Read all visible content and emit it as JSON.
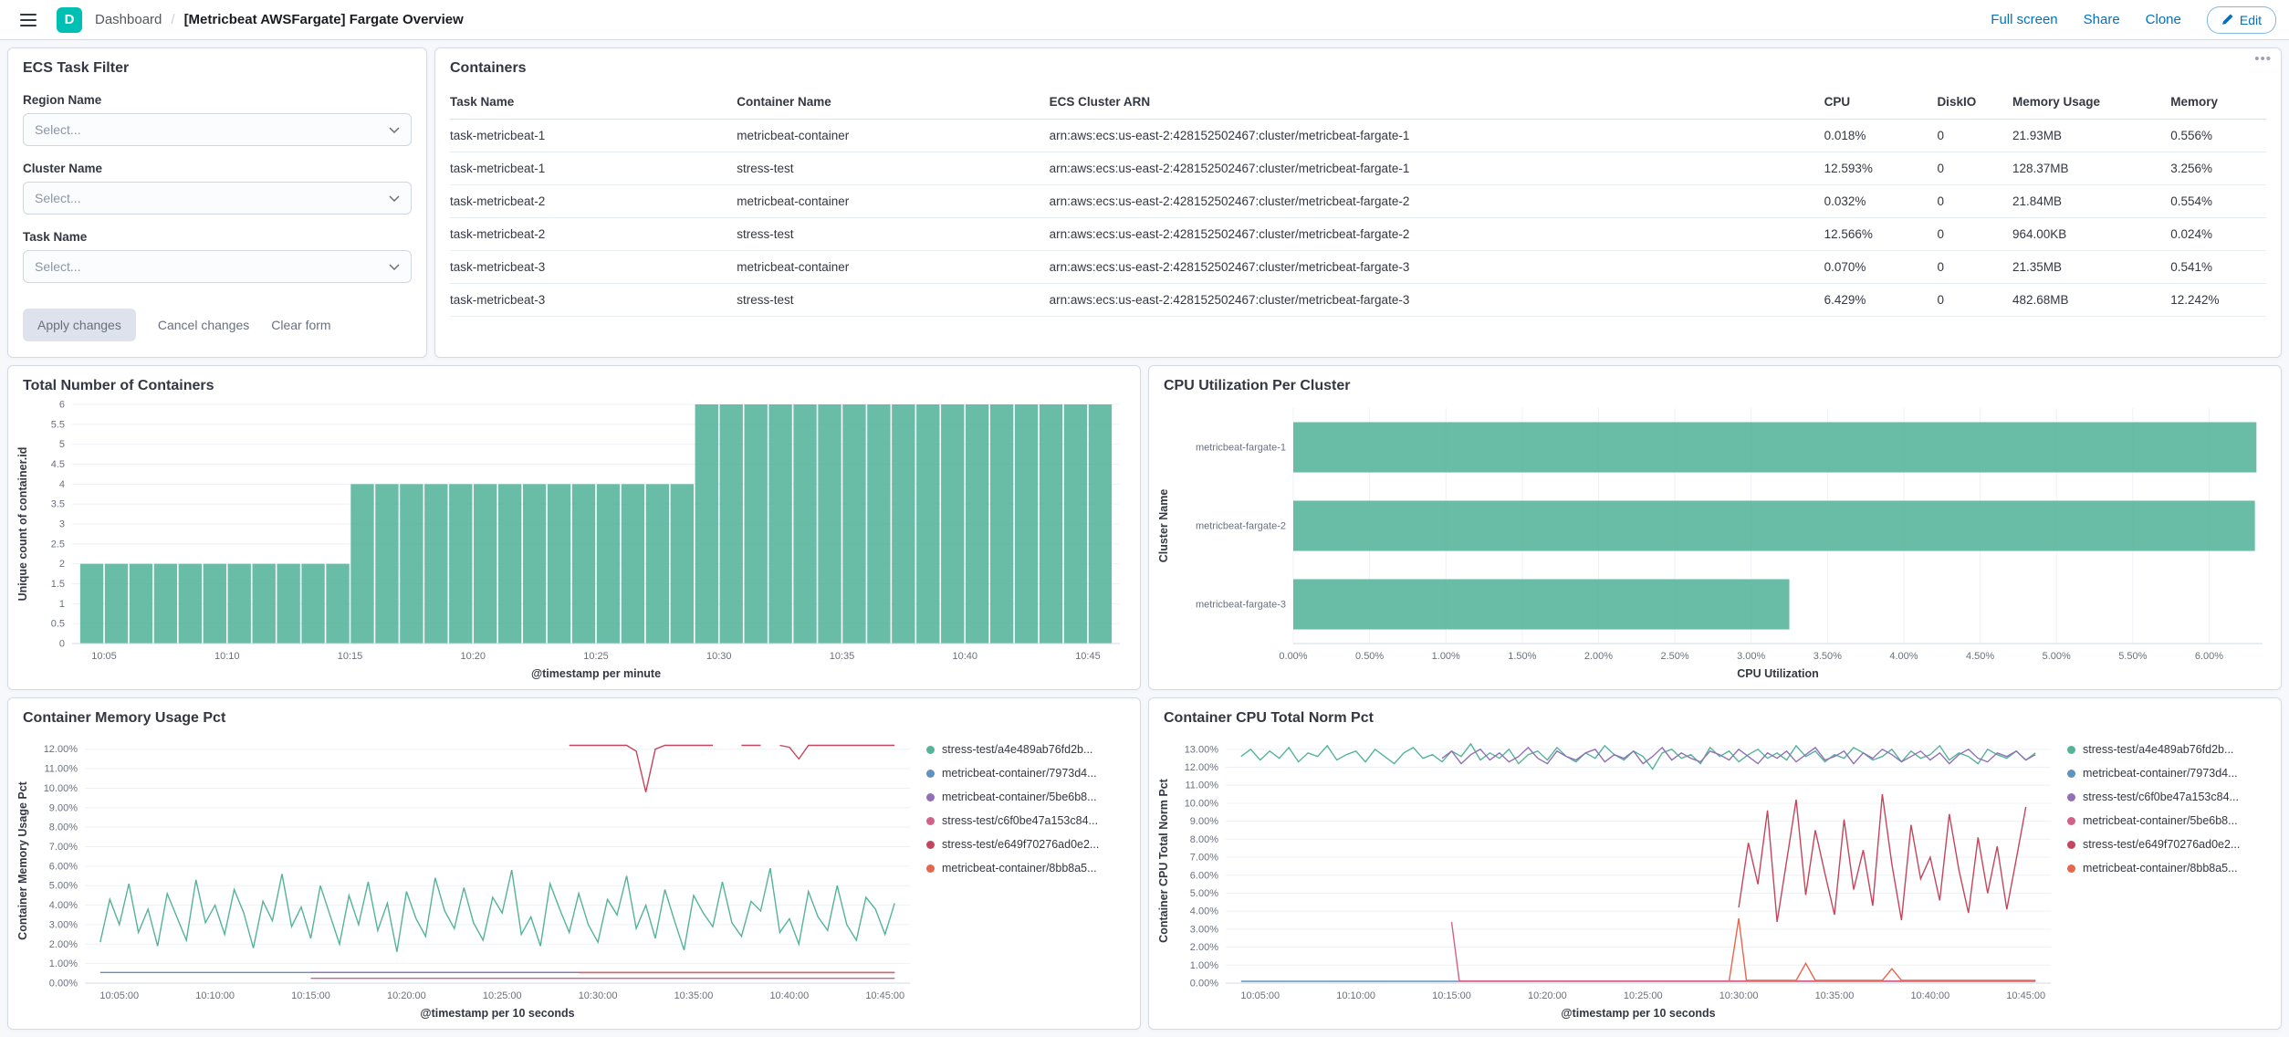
{
  "header": {
    "logo_letter": "D",
    "breadcrumbs": [
      "Dashboard",
      "[Metricbeat AWSFargate] Fargate Overview"
    ],
    "nav": {
      "full_screen": "Full screen",
      "share": "Share",
      "clone": "Clone",
      "edit": "Edit"
    }
  },
  "colors": {
    "accent": "#0071C2",
    "bar_green": "#54B399"
  },
  "filter_panel": {
    "title": "ECS Task Filter",
    "fields": [
      {
        "label": "Region Name",
        "placeholder": "Select..."
      },
      {
        "label": "Cluster Name",
        "placeholder": "Select..."
      },
      {
        "label": "Task Name",
        "placeholder": "Select..."
      }
    ],
    "buttons": {
      "apply": "Apply changes",
      "cancel": "Cancel changes",
      "clear": "Clear form"
    }
  },
  "containers_table": {
    "title": "Containers",
    "columns": [
      "Task Name",
      "Container Name",
      "ECS Cluster ARN",
      "CPU",
      "DiskIO",
      "Memory Usage",
      "Memory"
    ],
    "rows": [
      [
        "task-metricbeat-1",
        "metricbeat-container",
        "arn:aws:ecs:us-east-2:428152502467:cluster/metricbeat-fargate-1",
        "0.018%",
        "0",
        "21.93MB",
        "0.556%"
      ],
      [
        "task-metricbeat-1",
        "stress-test",
        "arn:aws:ecs:us-east-2:428152502467:cluster/metricbeat-fargate-1",
        "12.593%",
        "0",
        "128.37MB",
        "3.256%"
      ],
      [
        "task-metricbeat-2",
        "metricbeat-container",
        "arn:aws:ecs:us-east-2:428152502467:cluster/metricbeat-fargate-2",
        "0.032%",
        "0",
        "21.84MB",
        "0.554%"
      ],
      [
        "task-metricbeat-2",
        "stress-test",
        "arn:aws:ecs:us-east-2:428152502467:cluster/metricbeat-fargate-2",
        "12.566%",
        "0",
        "964.00KB",
        "0.024%"
      ],
      [
        "task-metricbeat-3",
        "metricbeat-container",
        "arn:aws:ecs:us-east-2:428152502467:cluster/metricbeat-fargate-3",
        "0.070%",
        "0",
        "21.35MB",
        "0.541%"
      ],
      [
        "task-metricbeat-3",
        "stress-test",
        "arn:aws:ecs:us-east-2:428152502467:cluster/metricbeat-fargate-3",
        "6.429%",
        "0",
        "482.68MB",
        "12.242%"
      ]
    ]
  },
  "chart_data": [
    {
      "type": "bar",
      "title": "Total Number of Containers",
      "xlabel": "@timestamp per minute",
      "ylabel": "Unique count of container.id",
      "color": "#54B399",
      "x0": 4,
      "dx": 1,
      "values": [
        2,
        2,
        2,
        2,
        2,
        2,
        2,
        2,
        2,
        2,
        2,
        4,
        4,
        4,
        4,
        4,
        4,
        4,
        4,
        4,
        4,
        4,
        4,
        4,
        4,
        6,
        6,
        6,
        6,
        6,
        6,
        6,
        6,
        6,
        6,
        6,
        6,
        6,
        6,
        6,
        6,
        6
      ],
      "xlim": [
        3.7,
        46.3
      ],
      "ylim": [
        0,
        6
      ],
      "yticks": [
        {
          "v": 0,
          "label": "0"
        },
        {
          "v": 0.5,
          "label": "0.5"
        },
        {
          "v": 1,
          "label": "1"
        },
        {
          "v": 1.5,
          "label": "1.5"
        },
        {
          "v": 2,
          "label": "2"
        },
        {
          "v": 2.5,
          "label": "2.5"
        },
        {
          "v": 3,
          "label": "3"
        },
        {
          "v": 3.5,
          "label": "3.5"
        },
        {
          "v": 4,
          "label": "4"
        },
        {
          "v": 4.5,
          "label": "4.5"
        },
        {
          "v": 5,
          "label": "5"
        },
        {
          "v": 5.5,
          "label": "5.5"
        },
        {
          "v": 6,
          "label": "6"
        }
      ],
      "xticks": [
        {
          "v": 5,
          "label": "10:05"
        },
        {
          "v": 10,
          "label": "10:10"
        },
        {
          "v": 15,
          "label": "10:15"
        },
        {
          "v": 20,
          "label": "10:20"
        },
        {
          "v": 25,
          "label": "10:25"
        },
        {
          "v": 30,
          "label": "10:30"
        },
        {
          "v": 35,
          "label": "10:35"
        },
        {
          "v": 40,
          "label": "10:40"
        },
        {
          "v": 45,
          "label": "10:45"
        }
      ]
    },
    {
      "type": "hbar",
      "title": "CPU Utilization Per Cluster",
      "xlabel": "CPU Utilization",
      "ylabel": "Cluster Name",
      "color": "#54B399",
      "categories": [
        "metricbeat-fargate-1",
        "metricbeat-fargate-2",
        "metricbeat-fargate-3"
      ],
      "values": [
        6.31,
        6.3,
        3.25
      ],
      "xlim": [
        0,
        6.35
      ],
      "xticks": [
        {
          "v": 0,
          "label": "0.00%"
        },
        {
          "v": 0.5,
          "label": "0.50%"
        },
        {
          "v": 1,
          "label": "1.00%"
        },
        {
          "v": 1.5,
          "label": "1.50%"
        },
        {
          "v": 2,
          "label": "2.00%"
        },
        {
          "v": 2.5,
          "label": "2.50%"
        },
        {
          "v": 3,
          "label": "3.00%"
        },
        {
          "v": 3.5,
          "label": "3.50%"
        },
        {
          "v": 4,
          "label": "4.00%"
        },
        {
          "v": 4.5,
          "label": "4.50%"
        },
        {
          "v": 5,
          "label": "5.00%"
        },
        {
          "v": 5.5,
          "label": "5.50%"
        },
        {
          "v": 6,
          "label": "6.00%"
        }
      ]
    },
    {
      "type": "line",
      "title": "Container Memory Usage Pct",
      "xlabel": "@timestamp per 10 seconds",
      "ylabel": "Container Memory Usage Pct",
      "xlim": [
        3.2,
        46.3
      ],
      "ylim": [
        0,
        12.55
      ],
      "yticks": [
        {
          "v": 0,
          "label": "0.00%"
        },
        {
          "v": 1,
          "label": "1.00%"
        },
        {
          "v": 2,
          "label": "2.00%"
        },
        {
          "v": 3,
          "label": "3.00%"
        },
        {
          "v": 4,
          "label": "4.00%"
        },
        {
          "v": 5,
          "label": "5.00%"
        },
        {
          "v": 6,
          "label": "6.00%"
        },
        {
          "v": 7,
          "label": "7.00%"
        },
        {
          "v": 8,
          "label": "8.00%"
        },
        {
          "v": 9,
          "label": "9.00%"
        },
        {
          "v": 10,
          "label": "10.00%"
        },
        {
          "v": 11,
          "label": "11.00%"
        },
        {
          "v": 12,
          "label": "12.00%"
        }
      ],
      "xticks": [
        {
          "v": 5,
          "label": "10:05:00"
        },
        {
          "v": 10,
          "label": "10:10:00"
        },
        {
          "v": 15,
          "label": "10:15:00"
        },
        {
          "v": 20,
          "label": "10:20:00"
        },
        {
          "v": 25,
          "label": "10:25:00"
        },
        {
          "v": 30,
          "label": "10:30:00"
        },
        {
          "v": 35,
          "label": "10:35:00"
        },
        {
          "v": 40,
          "label": "10:40:00"
        },
        {
          "v": 45,
          "label": "10:45:00"
        }
      ],
      "series": [
        {
          "name": "stress-test/a4e489ab76fd2b...",
          "color": "#54B399",
          "x0": 4,
          "dx": 0.5,
          "values": [
            2.1,
            4.3,
            3.0,
            5.1,
            2.6,
            3.8,
            1.9,
            4.6,
            3.4,
            2.2,
            5.3,
            3.1,
            4.0,
            2.5,
            4.8,
            3.6,
            1.8,
            4.2,
            3.2,
            5.6,
            2.9,
            3.9,
            2.3,
            5.0,
            3.5,
            2.0,
            4.5,
            3.0,
            5.2,
            2.7,
            4.1,
            1.6,
            4.7,
            3.3,
            2.4,
            5.4,
            3.7,
            2.8,
            4.9,
            3.1,
            2.2,
            4.4,
            3.6,
            5.8,
            2.5,
            3.4,
            1.9,
            5.1,
            3.8,
            2.6,
            4.6,
            3.0,
            2.1,
            4.3,
            3.5,
            5.5,
            2.8,
            4.0,
            2.3,
            4.8,
            3.2,
            1.7,
            4.5,
            3.6,
            2.9,
            5.2,
            3.1,
            2.4,
            4.2,
            3.7,
            5.9,
            2.6,
            3.3,
            2.0,
            4.7,
            3.4,
            2.7,
            5.0,
            3.0,
            2.2,
            4.4,
            3.8,
            2.5,
            4.1
          ]
        },
        {
          "name": "metricbeat-container/7973d4...",
          "color": "#6092C0",
          "points": [
            [
              4,
              0.55
            ],
            [
              45.5,
              0.55
            ]
          ]
        },
        {
          "name": "metricbeat-container/5be6b8...",
          "color": "#9170B8",
          "points": [
            [
              15,
              0.55
            ],
            [
              45.5,
              0.55
            ]
          ]
        },
        {
          "name": "stress-test/c6f0be47a153c84...",
          "color": "#D36086",
          "points": [
            [
              15,
              0.25
            ],
            [
              45.5,
              0.25
            ]
          ]
        },
        {
          "name": "stress-test/e649f70276ad0e2...",
          "color": "#C4455C",
          "x0": 28.5,
          "dx": 0.5,
          "values": [
            12.2,
            12.2,
            12.2,
            12.2,
            12.2,
            12.2,
            12.2,
            11.9,
            9.8,
            12.0,
            12.2,
            12.2,
            12.2,
            12.2,
            12.2,
            12.2,
            null,
            null,
            12.2,
            12.2,
            12.2,
            null,
            12.2,
            12.1,
            11.5,
            12.2,
            12.2,
            12.2,
            12.2,
            12.2,
            12.2,
            12.2,
            12.2,
            12.2,
            12.2
          ]
        },
        {
          "name": "metricbeat-container/8bb8a5...",
          "color": "#E7664C",
          "points": [
            [
              29,
              0.54
            ],
            [
              45.5,
              0.54
            ]
          ]
        }
      ]
    },
    {
      "type": "line",
      "title": "Container CPU Total Norm Pct",
      "xlabel": "@timestamp per 10 seconds",
      "ylabel": "Container CPU Total Norm Pct",
      "xlim": [
        3.2,
        46.3
      ],
      "ylim": [
        0,
        13.6
      ],
      "yticks": [
        {
          "v": 0,
          "label": "0.00%"
        },
        {
          "v": 1,
          "label": "1.00%"
        },
        {
          "v": 2,
          "label": "2.00%"
        },
        {
          "v": 3,
          "label": "3.00%"
        },
        {
          "v": 4,
          "label": "4.00%"
        },
        {
          "v": 5,
          "label": "5.00%"
        },
        {
          "v": 6,
          "label": "6.00%"
        },
        {
          "v": 7,
          "label": "7.00%"
        },
        {
          "v": 8,
          "label": "8.00%"
        },
        {
          "v": 9,
          "label": "9.00%"
        },
        {
          "v": 10,
          "label": "10.00%"
        },
        {
          "v": 11,
          "label": "11.00%"
        },
        {
          "v": 12,
          "label": "12.00%"
        },
        {
          "v": 13,
          "label": "13.00%"
        }
      ],
      "xticks": [
        {
          "v": 5,
          "label": "10:05:00"
        },
        {
          "v": 10,
          "label": "10:10:00"
        },
        {
          "v": 15,
          "label": "10:15:00"
        },
        {
          "v": 20,
          "label": "10:20:00"
        },
        {
          "v": 25,
          "label": "10:25:00"
        },
        {
          "v": 30,
          "label": "10:30:00"
        },
        {
          "v": 35,
          "label": "10:35:00"
        },
        {
          "v": 40,
          "label": "10:40:00"
        },
        {
          "v": 45,
          "label": "10:45:00"
        }
      ],
      "series": [
        {
          "name": "stress-test/a4e489ab76fd2b...",
          "color": "#54B399",
          "x0": 4,
          "dx": 0.5,
          "values": [
            12.6,
            13.0,
            12.4,
            12.9,
            12.5,
            13.1,
            12.3,
            12.8,
            12.6,
            13.2,
            12.4,
            12.7,
            12.9,
            12.3,
            13.0,
            12.6,
            12.2,
            12.8,
            13.1,
            12.5,
            12.7,
            12.3,
            12.9,
            12.6,
            13.3,
            12.4,
            12.8,
            12.5,
            13.0,
            12.2,
            12.7,
            12.9,
            12.4,
            13.1,
            12.6,
            12.3,
            12.8,
            12.5,
            13.2,
            12.7,
            12.4,
            12.9,
            12.6,
            11.9,
            12.8,
            13.0,
            12.5,
            12.7,
            12.2,
            13.1,
            12.6,
            12.9,
            12.3,
            12.7,
            13.0,
            12.5,
            12.8,
            12.4,
            13.2,
            12.6,
            12.9,
            12.3,
            12.7,
            12.5,
            13.1,
            12.8,
            12.4,
            12.6,
            13.0,
            12.3,
            12.9,
            12.5,
            12.7,
            13.2,
            12.4,
            12.8,
            12.6,
            12.2,
            13.0,
            12.7,
            12.5,
            12.9,
            12.4,
            12.8
          ]
        },
        {
          "name": "metricbeat-container/7973d4...",
          "color": "#6092C0",
          "points": [
            [
              4,
              0.1
            ],
            [
              45.5,
              0.1
            ]
          ]
        },
        {
          "name": "stress-test/c6f0be47a153c84...",
          "color": "#9170B8",
          "x0": 14.5,
          "dx": 0.5,
          "values": [
            12.5,
            12.9,
            12.2,
            12.7,
            13.0,
            12.4,
            12.8,
            12.3,
            12.6,
            13.1,
            12.5,
            12.2,
            12.9,
            12.6,
            12.4,
            12.8,
            13.0,
            12.3,
            12.7,
            12.5,
            12.9,
            12.2,
            12.6,
            13.1,
            12.4,
            12.8,
            12.5,
            12.3,
            12.9,
            12.7,
            12.4,
            13.0,
            12.6,
            12.2,
            12.8,
            12.5,
            12.9,
            12.3,
            12.7,
            13.1,
            12.4,
            12.6,
            12.9,
            12.2,
            12.8,
            12.5,
            13.0,
            12.7,
            12.3,
            12.6,
            12.9,
            12.4,
            12.8,
            12.2,
            12.7,
            13.0,
            12.5,
            12.3,
            12.8,
            12.6,
            12.9,
            12.4,
            12.7
          ]
        },
        {
          "name": "metricbeat-container/5be6b8...",
          "color": "#D36086",
          "points": [
            [
              15,
              3.4
            ],
            [
              15.4,
              0.12
            ],
            [
              45.5,
              0.12
            ]
          ]
        },
        {
          "name": "stress-test/e649f70276ad0e2...",
          "color": "#C4455C",
          "x0": 30,
          "dx": 0.5,
          "values": [
            4.2,
            7.8,
            5.5,
            9.6,
            3.4,
            6.8,
            10.2,
            4.9,
            8.5,
            6.1,
            3.8,
            9.1,
            5.2,
            7.4,
            4.3,
            10.5,
            6.6,
            3.5,
            8.8,
            5.8,
            7.0,
            4.6,
            9.4,
            6.3,
            3.9,
            8.1,
            5.0,
            7.6,
            4.1,
            6.9,
            9.8
          ]
        },
        {
          "name": "metricbeat-container/8bb8a5...",
          "color": "#E7664C",
          "points": [
            [
              29.5,
              0.12
            ],
            [
              30,
              3.6
            ],
            [
              30.4,
              0.15
            ],
            [
              33,
              0.15
            ],
            [
              33.5,
              1.1
            ],
            [
              34,
              0.15
            ],
            [
              37.5,
              0.15
            ],
            [
              38,
              0.8
            ],
            [
              38.5,
              0.15
            ],
            [
              45.5,
              0.15
            ]
          ]
        }
      ]
    }
  ]
}
